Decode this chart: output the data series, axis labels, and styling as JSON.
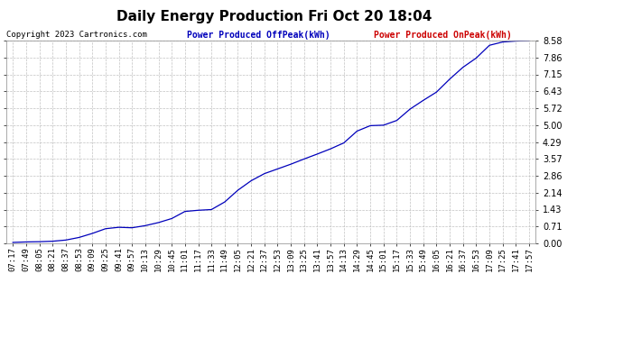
{
  "title": "Daily Energy Production Fri Oct 20 18:04",
  "copyright": "Copyright 2023 Cartronics.com",
  "legend_offpeak": "Power Produced OffPeak(kWh)",
  "legend_onpeak": "Power Produced OnPeak(kWh)",
  "offpeak_color": "#0000bb",
  "onpeak_color": "#cc0000",
  "line_color": "#0000bb",
  "background_color": "#ffffff",
  "plot_bg_color": "#ffffff",
  "grid_color": "#bbbbbb",
  "ylim": [
    0.0,
    8.58
  ],
  "yticks": [
    0.0,
    0.71,
    1.43,
    2.14,
    2.86,
    3.57,
    4.29,
    5.0,
    5.72,
    6.43,
    7.15,
    7.86,
    8.58
  ],
  "xtick_labels": [
    "07:17",
    "07:49",
    "08:05",
    "08:21",
    "08:37",
    "08:53",
    "09:09",
    "09:25",
    "09:41",
    "09:57",
    "10:13",
    "10:29",
    "10:45",
    "11:01",
    "11:17",
    "11:33",
    "11:49",
    "12:05",
    "12:21",
    "12:37",
    "12:53",
    "13:09",
    "13:25",
    "13:41",
    "13:57",
    "14:13",
    "14:29",
    "14:45",
    "15:01",
    "15:17",
    "15:33",
    "15:49",
    "16:05",
    "16:21",
    "16:37",
    "16:53",
    "17:09",
    "17:25",
    "17:41",
    "17:57"
  ],
  "curve_y_values": [
    0.04,
    0.06,
    0.07,
    0.09,
    0.14,
    0.25,
    0.42,
    0.62,
    0.68,
    0.66,
    0.75,
    0.88,
    1.05,
    1.35,
    1.4,
    1.43,
    1.75,
    2.25,
    2.65,
    2.95,
    3.15,
    3.35,
    3.57,
    3.78,
    4.0,
    4.25,
    4.75,
    4.98,
    5.0,
    5.2,
    5.68,
    6.05,
    6.4,
    6.95,
    7.45,
    7.84,
    8.38,
    8.52,
    8.56,
    8.58
  ],
  "title_fontsize": 11,
  "copyright_fontsize": 6.5,
  "legend_fontsize": 7,
  "tick_fontsize": 6.5,
  "ytick_fontsize": 7
}
